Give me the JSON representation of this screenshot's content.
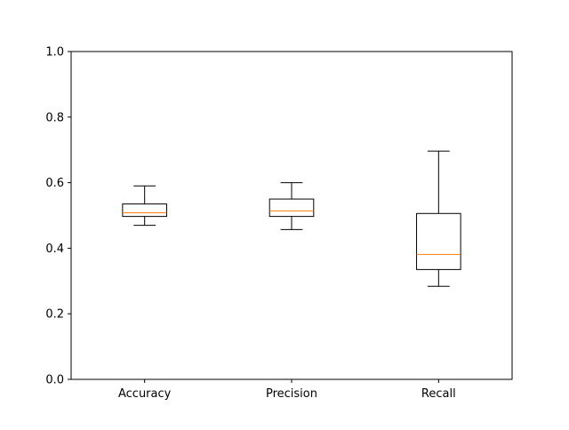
{
  "chart_data": {
    "type": "box",
    "title": "",
    "xlabel": "",
    "ylabel": "",
    "ylim": [
      0,
      1
    ],
    "yticks": [
      0.0,
      0.2,
      0.4,
      0.6,
      0.8,
      1.0
    ],
    "ytick_labels": [
      "0.0",
      "0.2",
      "0.4",
      "0.6",
      "0.8",
      "1.0"
    ],
    "grid": false,
    "categories": [
      "Accuracy",
      "Precision",
      "Recall"
    ],
    "boxes": [
      {
        "name": "Accuracy",
        "whisker_low": 0.47,
        "q1": 0.497,
        "median": 0.508,
        "q3": 0.535,
        "whisker_high": 0.59
      },
      {
        "name": "Precision",
        "whisker_low": 0.457,
        "q1": 0.497,
        "median": 0.514,
        "q3": 0.55,
        "whisker_high": 0.6
      },
      {
        "name": "Recall",
        "whisker_low": 0.284,
        "q1": 0.335,
        "median": 0.381,
        "q3": 0.506,
        "whisker_high": 0.696
      }
    ],
    "colors": {
      "box": "#000000",
      "median": "#ff7f0e",
      "whisker": "#000000",
      "axis": "#000000"
    }
  }
}
